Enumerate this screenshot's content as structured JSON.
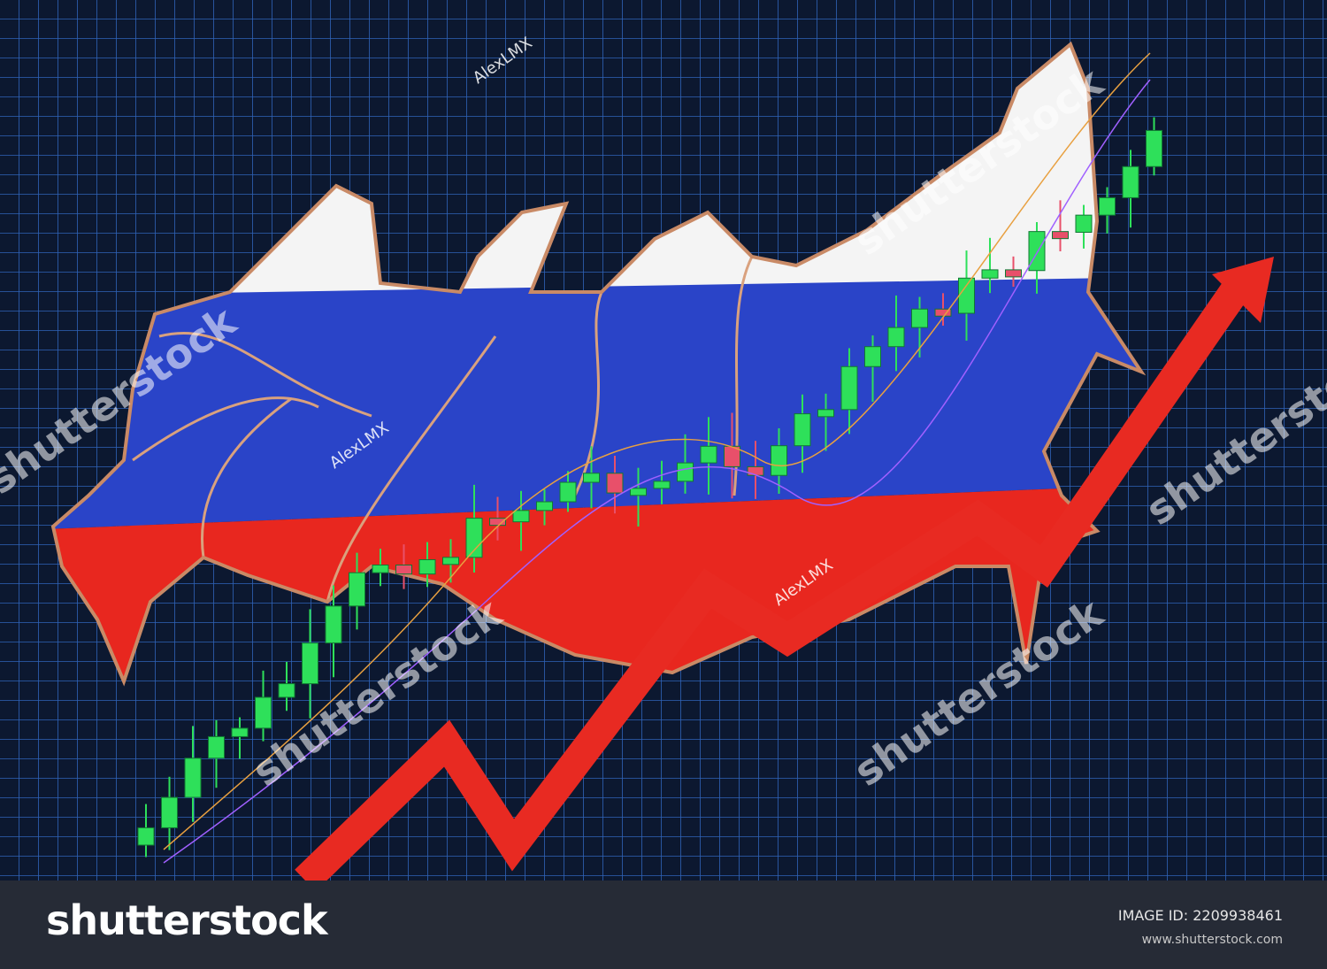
{
  "image": {
    "colors": {
      "background": "#0d1a33",
      "grid": "#2f63b8",
      "flag_white": "#f4f4f4",
      "flag_blue": "#2a44c8",
      "flag_red": "#e8271f",
      "arrow": "#e82a22",
      "candle_up": "#2ee05a",
      "candle_down": "#e8506a"
    },
    "watermarks": {
      "author": "AlexLMX",
      "stock": "shutterstock"
    }
  },
  "footer": {
    "logo": "shutterstock",
    "image_id": "IMAGE ID: 2209938461",
    "website": "www.shutterstock.com"
  }
}
